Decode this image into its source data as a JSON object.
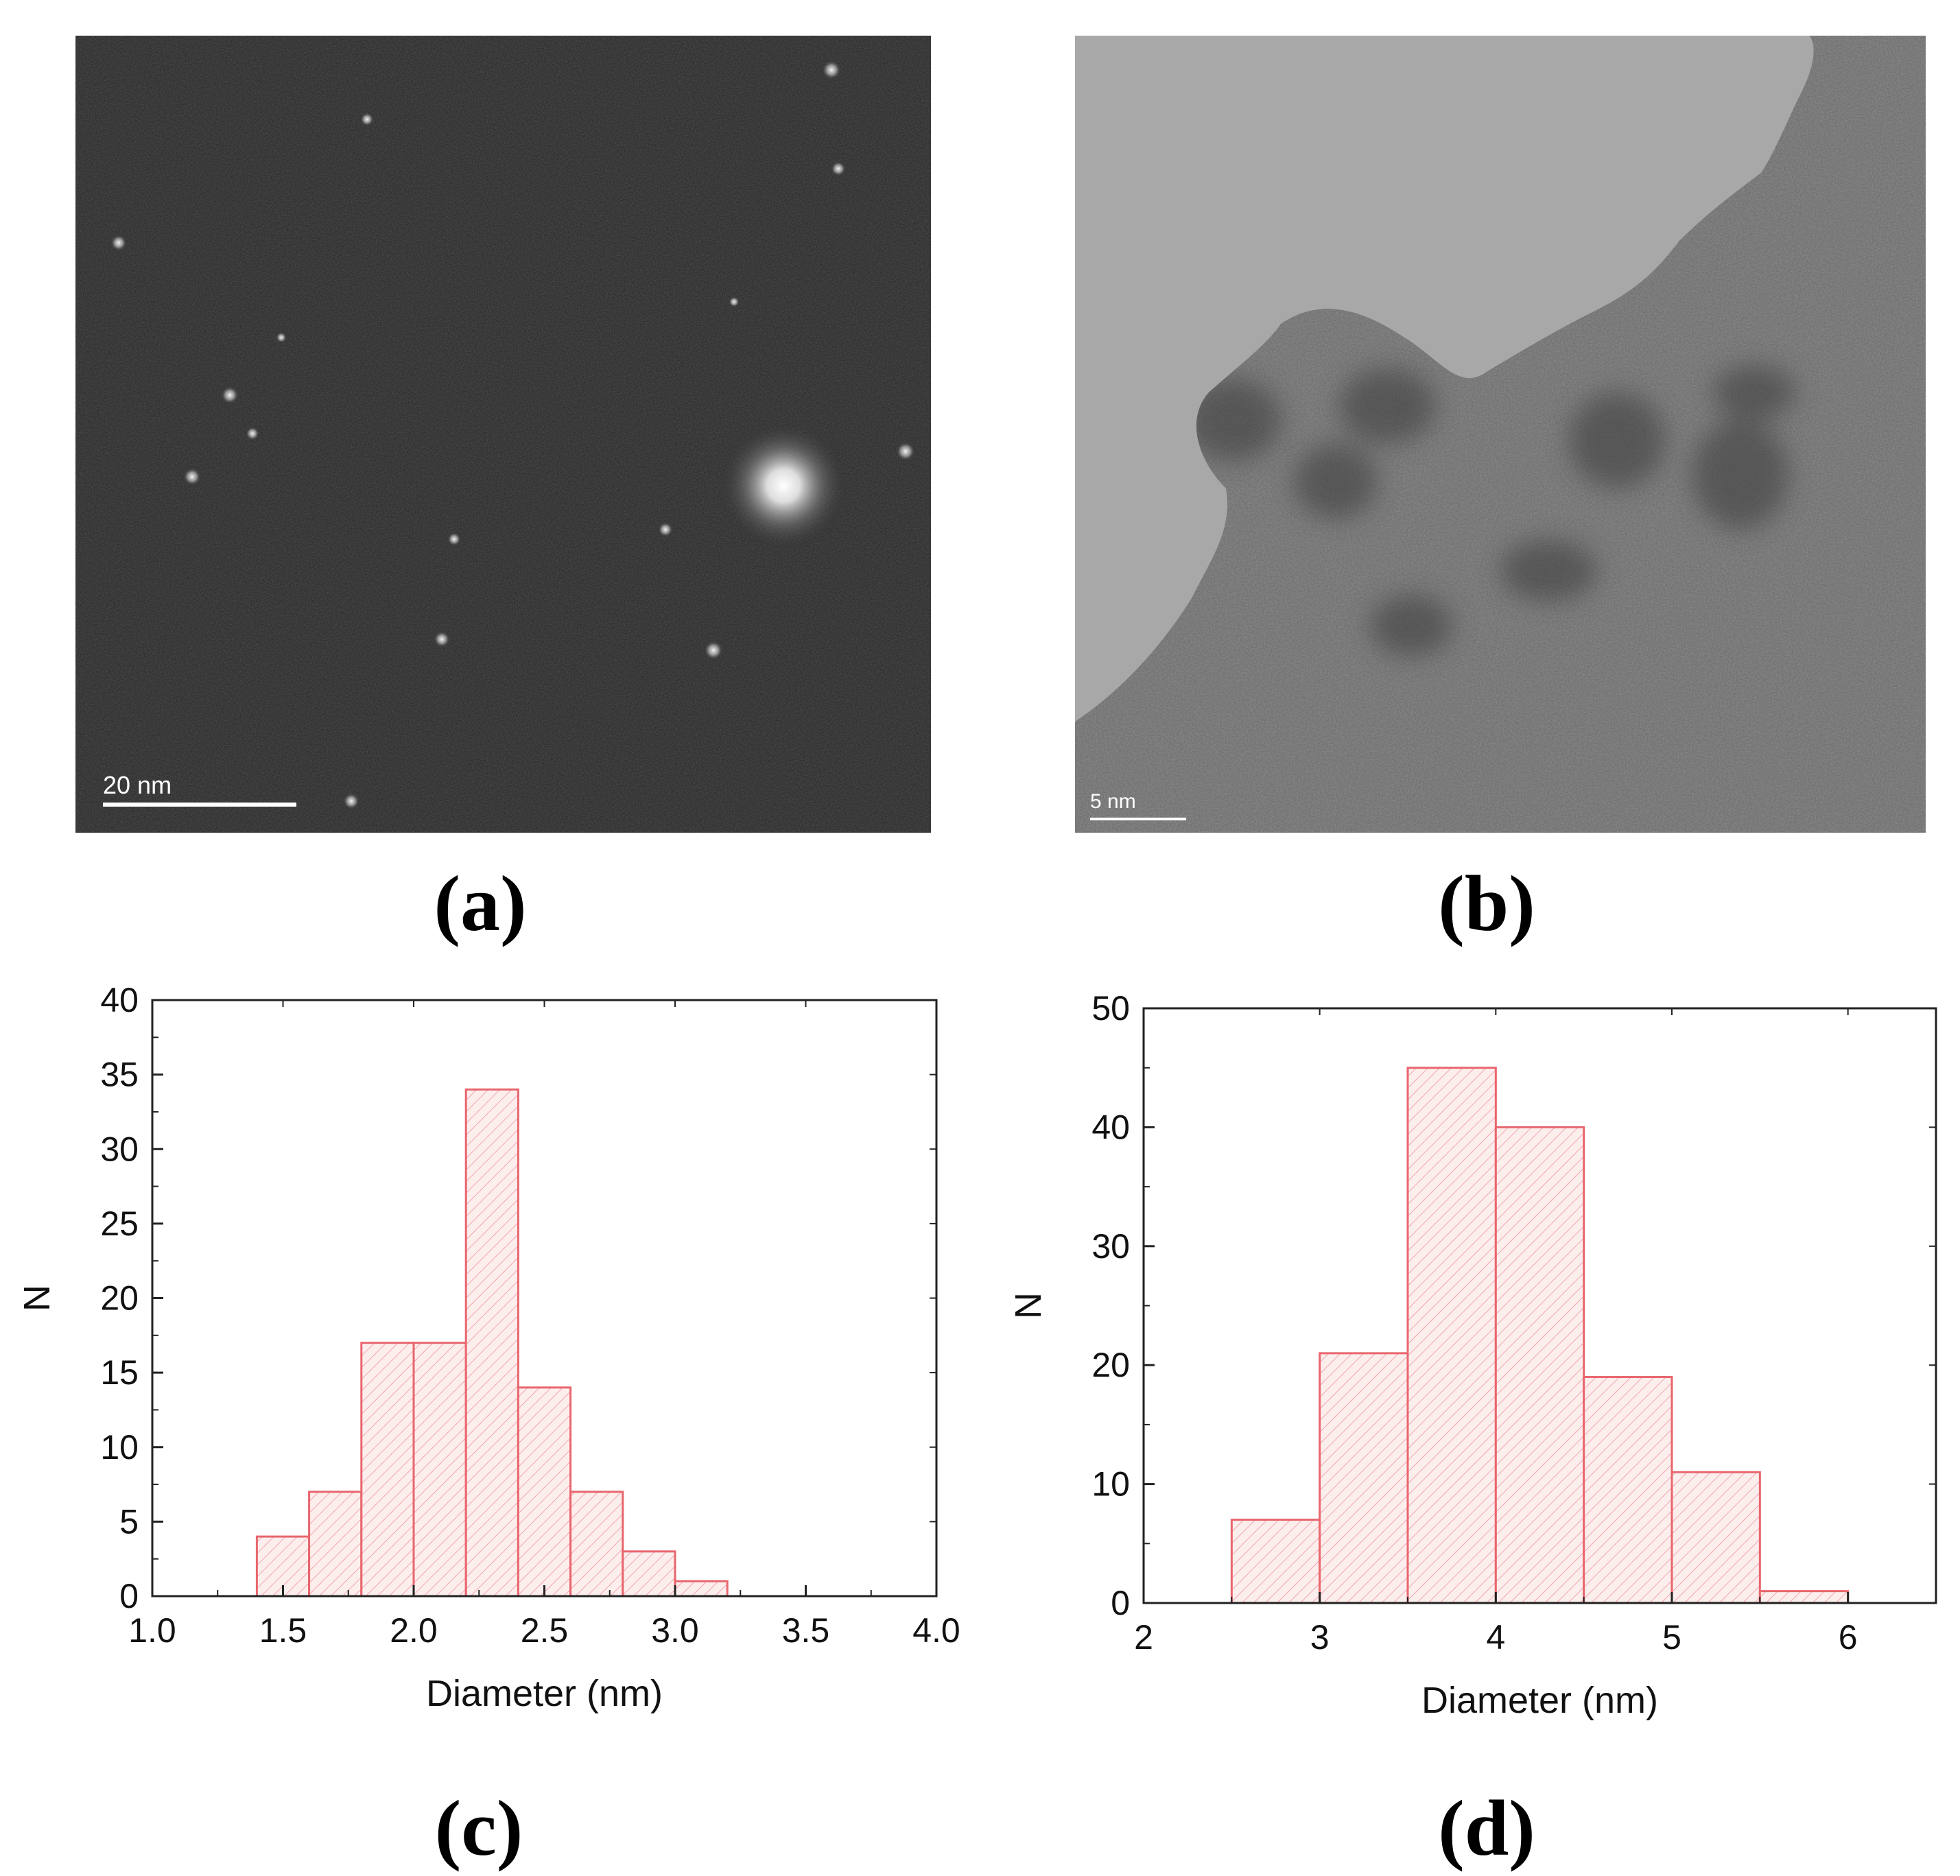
{
  "panels": {
    "a": {
      "letter": "(a)",
      "scale_label": "20 nm"
    },
    "b": {
      "letter": "(b)",
      "scale_label": "5 nm"
    },
    "c": {
      "letter": "(c)"
    },
    "d": {
      "letter": "(d)"
    }
  },
  "colors": {
    "bar_stroke": "#e8666e",
    "bar_hatch": "#f2a6ab",
    "bar_fill": "#fdeeee",
    "axis": "#222222"
  },
  "chart_data": [
    {
      "id": "c",
      "type": "bar",
      "title": "",
      "xlabel": "Diameter (nm)",
      "ylabel": "N",
      "xlim": [
        1.0,
        4.0
      ],
      "ylim": [
        0,
        40
      ],
      "xticks": [
        "1.0",
        "1.5",
        "2.0",
        "2.5",
        "3.0",
        "3.5",
        "4.0"
      ],
      "yticks": [
        "0",
        "5",
        "10",
        "15",
        "20",
        "25",
        "30",
        "35",
        "40"
      ],
      "bins": [
        {
          "from": 1.4,
          "to": 1.6,
          "value": 4
        },
        {
          "from": 1.6,
          "to": 1.8,
          "value": 7
        },
        {
          "from": 1.8,
          "to": 2.0,
          "value": 17
        },
        {
          "from": 2.0,
          "to": 2.2,
          "value": 17
        },
        {
          "from": 2.2,
          "to": 2.4,
          "value": 34
        },
        {
          "from": 2.4,
          "to": 2.6,
          "value": 14
        },
        {
          "from": 2.6,
          "to": 2.8,
          "value": 7
        },
        {
          "from": 2.8,
          "to": 3.0,
          "value": 3
        },
        {
          "from": 3.0,
          "to": 3.2,
          "value": 1
        }
      ]
    },
    {
      "id": "d",
      "type": "bar",
      "title": "",
      "xlabel": "Diameter (nm)",
      "ylabel": "N",
      "xlim": [
        2,
        6.5
      ],
      "ylim": [
        0,
        50
      ],
      "xticks": [
        "2",
        "3",
        "4",
        "5",
        "6"
      ],
      "yticks": [
        "0",
        "10",
        "20",
        "30",
        "40",
        "50"
      ],
      "bins": [
        {
          "from": 2.5,
          "to": 3.0,
          "value": 7
        },
        {
          "from": 3.0,
          "to": 3.5,
          "value": 21
        },
        {
          "from": 3.5,
          "to": 4.0,
          "value": 45
        },
        {
          "from": 4.0,
          "to": 4.5,
          "value": 40
        },
        {
          "from": 4.5,
          "to": 5.0,
          "value": 19
        },
        {
          "from": 5.0,
          "to": 5.5,
          "value": 11
        },
        {
          "from": 5.5,
          "to": 6.0,
          "value": 1
        }
      ]
    }
  ]
}
